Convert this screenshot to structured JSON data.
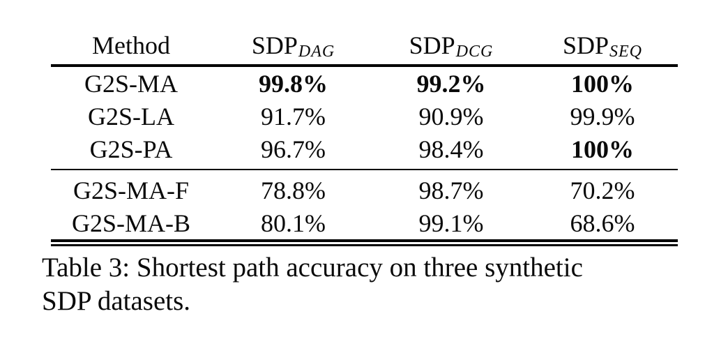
{
  "page": {
    "background": "#ffffff",
    "text_color": "#0a0a0a"
  },
  "table": {
    "header": {
      "method_label": "Method",
      "datasets": [
        {
          "base": "SDP",
          "subscript": "DAG"
        },
        {
          "base": "SDP",
          "subscript": "DCG"
        },
        {
          "base": "SDP",
          "subscript": "SEQ"
        }
      ]
    },
    "rows": [
      {
        "method": "G2S-MA",
        "values": [
          {
            "text": "99.8%",
            "bold": true
          },
          {
            "text": "99.2%",
            "bold": true
          },
          {
            "text": "100%",
            "bold": true
          }
        ]
      },
      {
        "method": "G2S-LA",
        "values": [
          {
            "text": "91.7%",
            "bold": false
          },
          {
            "text": "90.9%",
            "bold": false
          },
          {
            "text": "99.9%",
            "bold": false
          }
        ]
      },
      {
        "method": "G2S-PA",
        "values": [
          {
            "text": "96.7%",
            "bold": false
          },
          {
            "text": "98.4%",
            "bold": false
          },
          {
            "text": "100%",
            "bold": true
          }
        ]
      },
      {
        "method": "G2S-MA-F",
        "values": [
          {
            "text": "78.8%",
            "bold": false
          },
          {
            "text": "98.7%",
            "bold": false
          },
          {
            "text": "70.2%",
            "bold": false
          }
        ]
      },
      {
        "method": "G2S-MA-B",
        "values": [
          {
            "text": "80.1%",
            "bold": false
          },
          {
            "text": "99.1%",
            "bold": false
          },
          {
            "text": "68.6%",
            "bold": false
          }
        ]
      }
    ]
  },
  "caption": {
    "lines": [
      "Table 3: Shortest path accuracy on three synthetic",
      "SDP datasets."
    ],
    "full_text": "Table 3: Shortest path accuracy on three synthetic SDP datasets."
  }
}
